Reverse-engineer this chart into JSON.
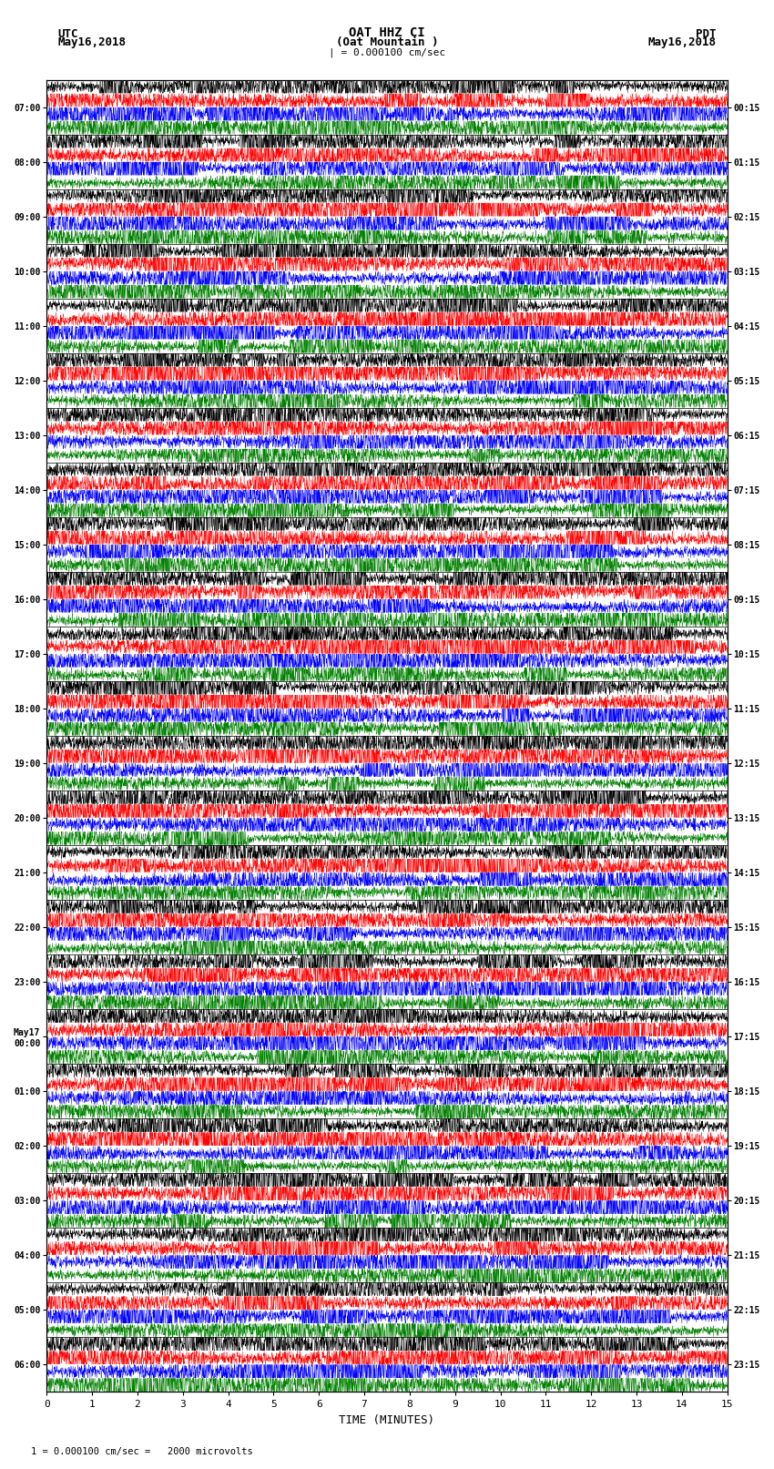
{
  "title_line1": "OAT HHZ CI",
  "title_line2": "(Oat Mountain )",
  "scale_label": "| = 0.000100 cm/sec",
  "bottom_note": "1 = 0.000100 cm/sec =   2000 microvolts",
  "left_label_line1": "UTC",
  "left_label_line2": "May16,2018",
  "right_label_line1": "PDT",
  "right_label_line2": "May16,2018",
  "xlabel": "TIME (MINUTES)",
  "utc_times": [
    "07:00",
    "08:00",
    "09:00",
    "10:00",
    "11:00",
    "12:00",
    "13:00",
    "14:00",
    "15:00",
    "16:00",
    "17:00",
    "18:00",
    "19:00",
    "20:00",
    "21:00",
    "22:00",
    "23:00",
    "May17\n00:00",
    "01:00",
    "02:00",
    "03:00",
    "04:00",
    "05:00",
    "06:00"
  ],
  "pdt_times": [
    "00:15",
    "01:15",
    "02:15",
    "03:15",
    "04:15",
    "05:15",
    "06:15",
    "07:15",
    "08:15",
    "09:15",
    "10:15",
    "11:15",
    "12:15",
    "13:15",
    "14:15",
    "15:15",
    "16:15",
    "17:15",
    "18:15",
    "19:15",
    "20:15",
    "21:15",
    "22:15",
    "23:15"
  ],
  "colors": [
    "black",
    "red",
    "blue",
    "green"
  ],
  "n_rows": 24,
  "traces_per_row": 4,
  "minutes": 15,
  "bg_color": "white",
  "trace_linewidth": 0.3,
  "fig_width": 8.5,
  "fig_height": 16.13,
  "dpi": 100
}
